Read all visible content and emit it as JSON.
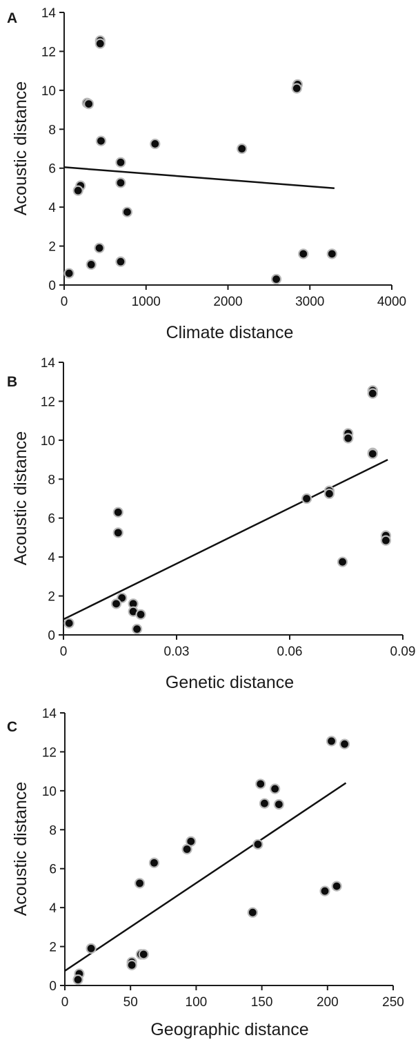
{
  "chart_data": [
    {
      "panel": "A",
      "type": "scatter",
      "xlabel": "Climate distance",
      "ylabel": "Acoustic distance",
      "xlim": [
        0,
        4000
      ],
      "ylim": [
        0,
        14
      ],
      "xticks": [
        "0",
        "1000",
        "2000",
        "3000",
        "4000"
      ],
      "yticks": [
        "0",
        "2",
        "4",
        "6",
        "8",
        "10",
        "12",
        "14"
      ],
      "points": [
        {
          "x": 440,
          "y": 12.55
        },
        {
          "x": 440,
          "y": 12.4
        },
        {
          "x": 2850,
          "y": 10.3
        },
        {
          "x": 2840,
          "y": 10.1
        },
        {
          "x": 280,
          "y": 9.35
        },
        {
          "x": 300,
          "y": 9.3
        },
        {
          "x": 450,
          "y": 7.4
        },
        {
          "x": 1110,
          "y": 7.25
        },
        {
          "x": 2170,
          "y": 7.0
        },
        {
          "x": 690,
          "y": 6.3
        },
        {
          "x": 690,
          "y": 5.25
        },
        {
          "x": 200,
          "y": 5.1
        },
        {
          "x": 170,
          "y": 4.85
        },
        {
          "x": 770,
          "y": 3.75
        },
        {
          "x": 430,
          "y": 1.9
        },
        {
          "x": 2920,
          "y": 1.6
        },
        {
          "x": 3270,
          "y": 1.6
        },
        {
          "x": 690,
          "y": 1.2
        },
        {
          "x": 330,
          "y": 1.05
        },
        {
          "x": 60,
          "y": 0.6
        },
        {
          "x": 2590,
          "y": 0.3
        }
      ],
      "trendline": {
        "x": [
          0,
          3300
        ],
        "y": [
          6.05,
          4.97
        ]
      }
    },
    {
      "panel": "B",
      "type": "scatter",
      "xlabel": "Genetic distance",
      "ylabel": "Acoustic distance",
      "xlim": [
        0,
        0.09
      ],
      "ylim": [
        0,
        14
      ],
      "xticks": [
        "0",
        "0.03",
        "0.06",
        "0.09"
      ],
      "yticks": [
        "0",
        "2",
        "4",
        "6",
        "8",
        "10",
        "12",
        "14"
      ],
      "points": [
        {
          "x": 0.082,
          "y": 12.55
        },
        {
          "x": 0.082,
          "y": 12.4
        },
        {
          "x": 0.0755,
          "y": 10.35
        },
        {
          "x": 0.0755,
          "y": 10.1
        },
        {
          "x": 0.082,
          "y": 9.35
        },
        {
          "x": 0.082,
          "y": 9.3
        },
        {
          "x": 0.0705,
          "y": 7.4
        },
        {
          "x": 0.0705,
          "y": 7.25
        },
        {
          "x": 0.0645,
          "y": 7.0
        },
        {
          "x": 0.0145,
          "y": 6.3
        },
        {
          "x": 0.0145,
          "y": 5.25
        },
        {
          "x": 0.0855,
          "y": 5.1
        },
        {
          "x": 0.0855,
          "y": 4.85
        },
        {
          "x": 0.074,
          "y": 3.75
        },
        {
          "x": 0.0155,
          "y": 1.9
        },
        {
          "x": 0.014,
          "y": 1.6
        },
        {
          "x": 0.0185,
          "y": 1.6
        },
        {
          "x": 0.0185,
          "y": 1.2
        },
        {
          "x": 0.0205,
          "y": 1.05
        },
        {
          "x": 0.0015,
          "y": 0.6
        },
        {
          "x": 0.0195,
          "y": 0.3
        }
      ],
      "trendline": {
        "x": [
          0,
          0.086
        ],
        "y": [
          0.8,
          9.0
        ]
      }
    },
    {
      "panel": "C",
      "type": "scatter",
      "xlabel": "Geographic distance",
      "ylabel": "Acoustic distance",
      "xlim": [
        0,
        250
      ],
      "ylim": [
        0,
        14
      ],
      "xticks": [
        "0",
        "50",
        "100",
        "150",
        "200",
        "250"
      ],
      "yticks": [
        "0",
        "2",
        "4",
        "6",
        "8",
        "10",
        "12",
        "14"
      ],
      "points": [
        {
          "x": 203,
          "y": 12.55
        },
        {
          "x": 213,
          "y": 12.4
        },
        {
          "x": 149,
          "y": 10.35
        },
        {
          "x": 160,
          "y": 10.1
        },
        {
          "x": 152,
          "y": 9.35
        },
        {
          "x": 163,
          "y": 9.3
        },
        {
          "x": 96,
          "y": 7.4
        },
        {
          "x": 147,
          "y": 7.25
        },
        {
          "x": 93,
          "y": 7.0
        },
        {
          "x": 68,
          "y": 6.3
        },
        {
          "x": 57,
          "y": 5.25
        },
        {
          "x": 207,
          "y": 5.1
        },
        {
          "x": 198,
          "y": 4.85
        },
        {
          "x": 143,
          "y": 3.75
        },
        {
          "x": 20,
          "y": 1.9
        },
        {
          "x": 58,
          "y": 1.6
        },
        {
          "x": 60,
          "y": 1.6
        },
        {
          "x": 51,
          "y": 1.2
        },
        {
          "x": 51,
          "y": 1.05
        },
        {
          "x": 11,
          "y": 0.6
        },
        {
          "x": 10,
          "y": 0.3
        }
      ],
      "trendline": {
        "x": [
          0,
          214
        ],
        "y": [
          0.75,
          10.4
        ]
      }
    }
  ]
}
